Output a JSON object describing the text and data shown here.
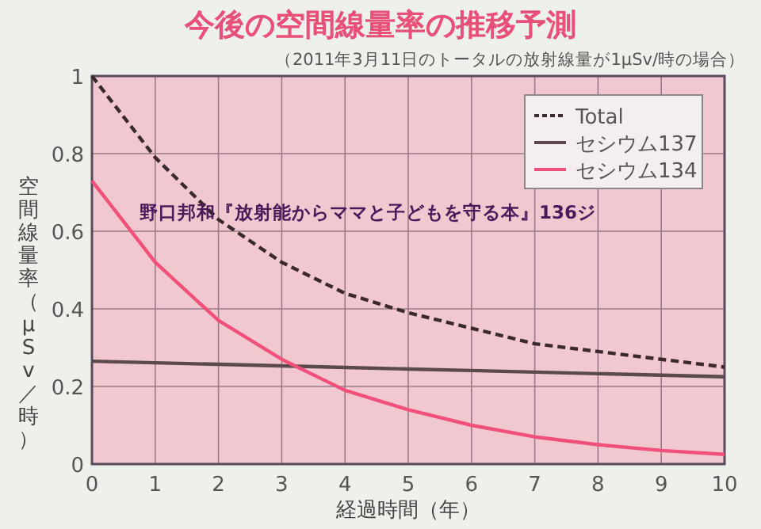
{
  "chart_data": {
    "type": "line",
    "title": "今後の空間線量率の推移予測",
    "subtitle": "（2011年3月11日のトータルの放射線量が1μSv/時の場合）",
    "xlabel": "経過時間（年）",
    "ylabel": "空間線量率（μSv／時）",
    "annotations": [
      "野口邦和『放射能からママと子どもを守る本』136ジ"
    ],
    "x": [
      0,
      1,
      2,
      3,
      4,
      5,
      6,
      7,
      8,
      9,
      10
    ],
    "series": [
      {
        "name": "Total",
        "color": "#3a2a2e",
        "line_style": "dashed",
        "values": [
          1.0,
          0.79,
          0.63,
          0.52,
          0.44,
          0.39,
          0.35,
          0.31,
          0.29,
          0.27,
          0.25
        ]
      },
      {
        "name": "セシウム137",
        "color": "#5a4a4e",
        "line_style": "solid",
        "values": [
          0.265,
          0.261,
          0.257,
          0.253,
          0.249,
          0.245,
          0.241,
          0.237,
          0.233,
          0.229,
          0.225
        ]
      },
      {
        "name": "セシウム134",
        "color": "#f0507a",
        "line_style": "solid",
        "values": [
          0.73,
          0.52,
          0.37,
          0.27,
          0.19,
          0.14,
          0.1,
          0.07,
          0.05,
          0.035,
          0.025
        ]
      }
    ],
    "xlim": [
      0,
      10
    ],
    "ylim": [
      0,
      1
    ],
    "xticks": [
      0,
      1,
      2,
      3,
      4,
      5,
      6,
      7,
      8,
      9,
      10
    ],
    "yticks": [
      0,
      0.2,
      0.4,
      0.6,
      0.8,
      1
    ],
    "grid": true,
    "legend": "top right"
  }
}
